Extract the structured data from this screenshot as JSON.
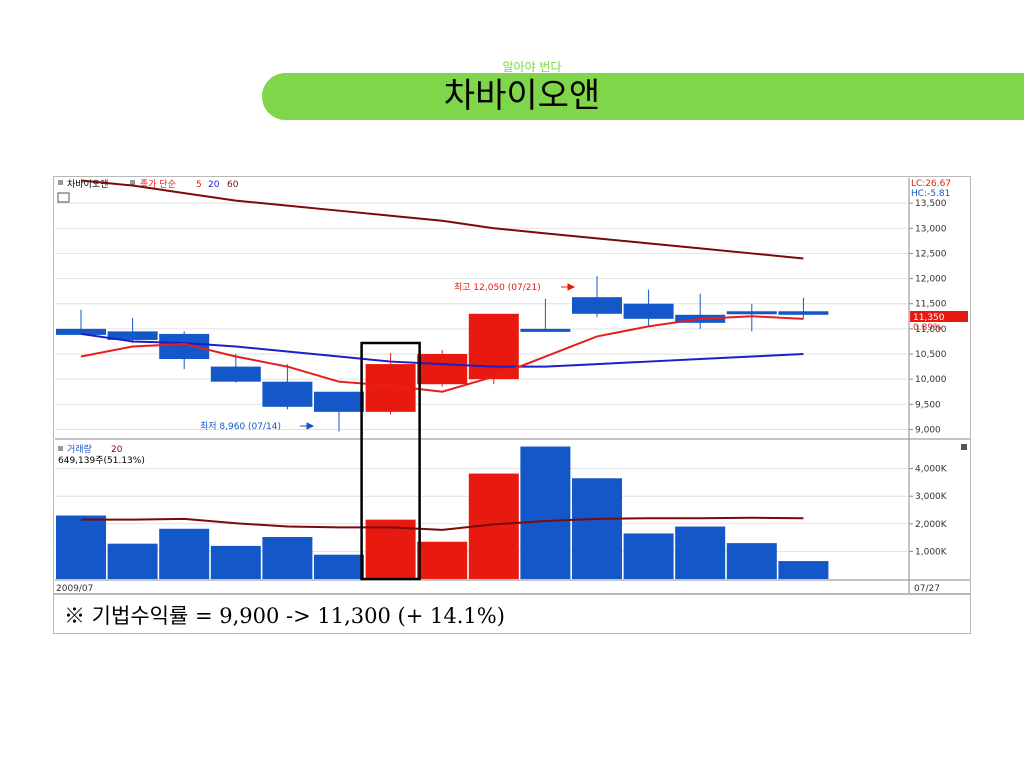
{
  "header": {
    "subtitle": "알아야 번다",
    "title": "차바이오앤"
  },
  "formula": "※ 기법수익률 = 9,900 -> 11,300 (+ 14.1%)",
  "colors": {
    "up": "#e8190f",
    "down": "#1457c8",
    "ma5": "#e81e1e",
    "ma20": "#1e1ec8",
    "ma60": "#7a0a0a",
    "banner": "#7fd64b"
  },
  "chart_data": [
    {
      "type": "candlestick",
      "legend": {
        "stock": "차바이오앤",
        "ma_label": "종가 단순",
        "periods": [
          "5",
          "20",
          "60"
        ]
      },
      "candles": [
        {
          "open": 11000,
          "close": 10880,
          "high": 11380,
          "low": 10880
        },
        {
          "open": 10950,
          "close": 10780,
          "high": 11220,
          "low": 10720
        },
        {
          "open": 10900,
          "close": 10400,
          "high": 10950,
          "low": 10200
        },
        {
          "open": 10250,
          "close": 9950,
          "high": 10500,
          "low": 9930
        },
        {
          "open": 9950,
          "close": 9450,
          "high": 10300,
          "low": 9400
        },
        {
          "open": 9750,
          "close": 9350,
          "high": 9750,
          "low": 8960
        },
        {
          "open": 9350,
          "close": 10300,
          "high": 10520,
          "low": 9300
        },
        {
          "open": 9900,
          "close": 10500,
          "high": 10580,
          "low": 9850
        },
        {
          "open": 10000,
          "close": 11300,
          "high": 11300,
          "low": 9900
        },
        {
          "open": 11000,
          "close": 11000,
          "high": 11600,
          "low": 10950
        },
        {
          "open": 11630,
          "close": 11300,
          "high": 12050,
          "low": 11230
        },
        {
          "open": 11500,
          "close": 11200,
          "high": 11780,
          "low": 11050
        },
        {
          "open": 11280,
          "close": 11120,
          "high": 11700,
          "low": 11000
        },
        {
          "open": 11350,
          "close": 11300,
          "high": 11500,
          "low": 10950
        },
        {
          "open": 11350,
          "close": 11280,
          "high": 11620,
          "low": 11200
        }
      ],
      "ma5": [
        10450,
        10650,
        10700,
        10450,
        10250,
        9950,
        9870,
        9750,
        10050,
        10450,
        10850,
        11050,
        11200,
        11250,
        11200
      ],
      "ma20": [
        10900,
        10750,
        10720,
        10650,
        10550,
        10450,
        10350,
        10300,
        10250,
        10250,
        10300,
        10350,
        10400,
        10450,
        10500
      ],
      "ma60": [
        13950,
        13850,
        13700,
        13550,
        13450,
        13350,
        13250,
        13150,
        13000,
        12900,
        12800,
        12700,
        12600,
        12500,
        12400
      ],
      "y_ticks": [
        "13,500",
        "13,000",
        "12,500",
        "12,000",
        "11,500",
        "11,000",
        "10,500",
        "10,000",
        "9,500",
        "9,000"
      ],
      "ylim": [
        8850,
        14000
      ],
      "lc_label": "LC:26.67",
      "hc_label": "HC:-5.81",
      "current_price": "11,350",
      "current_pct": "0.89%",
      "annotation_high": "최고 12,050 (07/21)",
      "annotation_low": "최저 8,960 (07/14)",
      "highlight_index": 6
    },
    {
      "type": "bar",
      "legend": {
        "name": "거래량",
        "period": "20",
        "readout": "649,139주(51.13%)"
      },
      "volumes": [
        2300,
        1280,
        1820,
        1200,
        1520,
        880,
        2150,
        1350,
        3820,
        4800,
        3650,
        1650,
        1900,
        1300,
        650
      ],
      "ma20": [
        2150,
        2150,
        2180,
        2020,
        1900,
        1870,
        1870,
        1780,
        1980,
        2100,
        2180,
        2200,
        2200,
        2220,
        2200
      ],
      "y_ticks": [
        "4,000K",
        "3,000K",
        "2,000K",
        "1,000K"
      ],
      "ylim": [
        0,
        5000
      ],
      "date_start": "2009/07",
      "date_end": "07/27"
    }
  ]
}
